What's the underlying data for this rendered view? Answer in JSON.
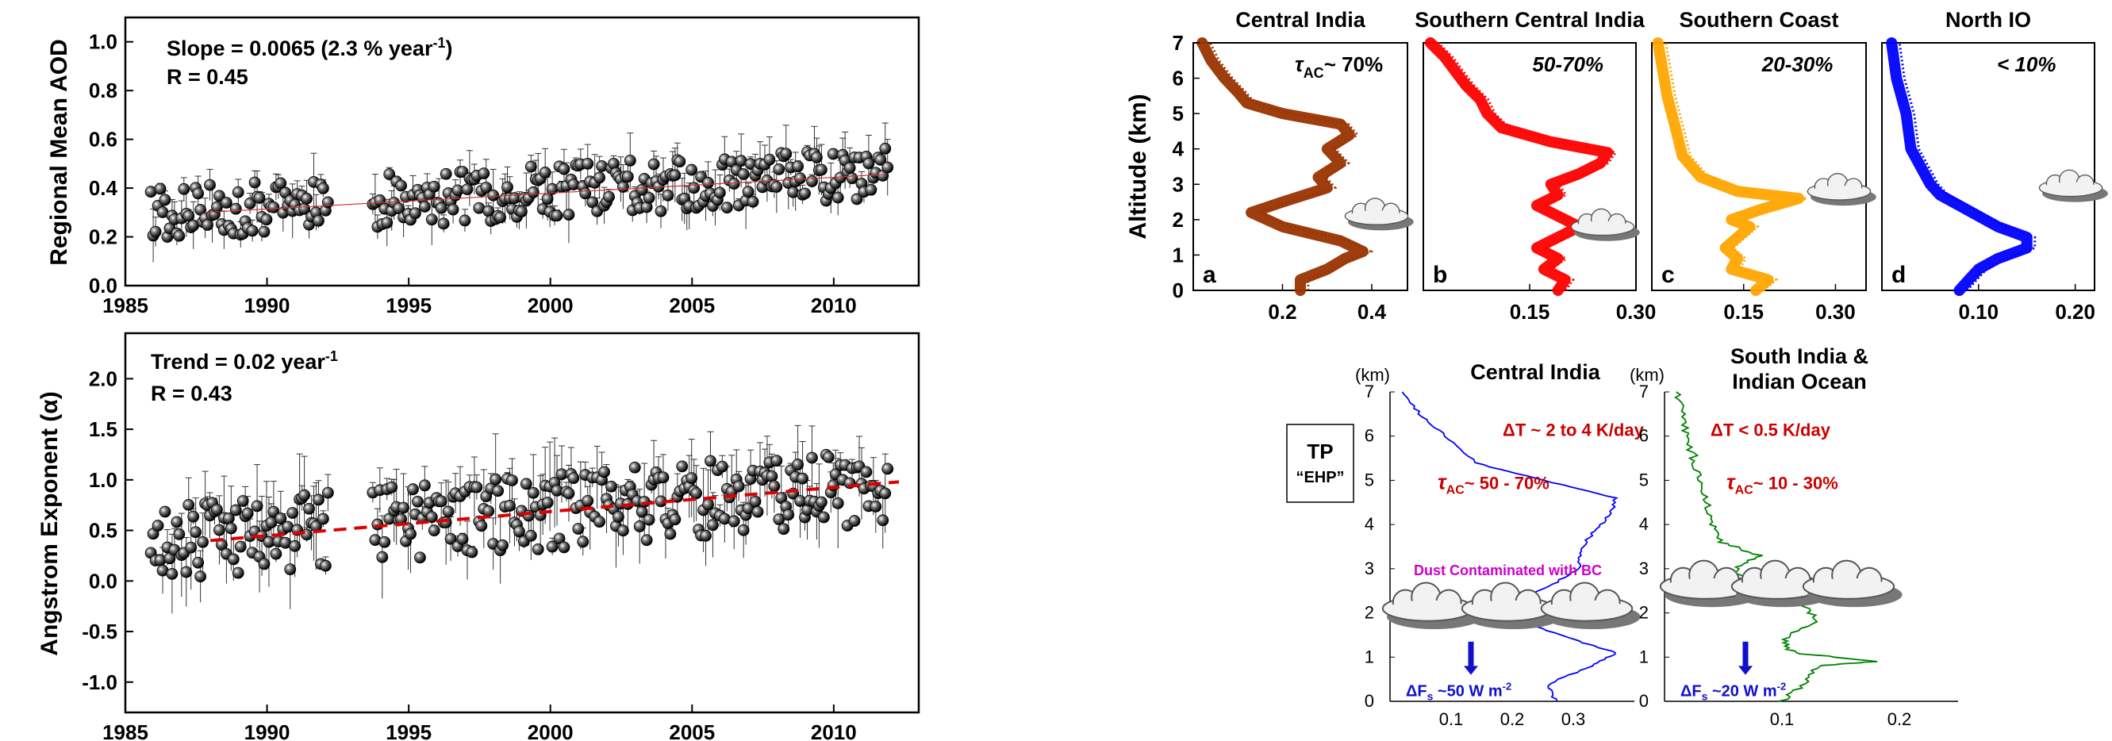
{
  "chart_data": [
    {
      "type": "scatter",
      "panel": "top-left",
      "ylabel": "Regional Mean AOD",
      "xlim": [
        1985,
        2013
      ],
      "ylim": [
        0,
        1.1
      ],
      "xticks": [
        "1985",
        "1990",
        "1995",
        "2000",
        "2005",
        "2010"
      ],
      "yticks": [
        "0.0",
        "0.2",
        "0.4",
        "0.6",
        "0.8",
        "1.0"
      ],
      "stat1_main": "Slope = 0.0065 (2.3 % year",
      "stat1_sup": "-1",
      "stat1_end": ")",
      "stat2": "R = 0.45",
      "trend": {
        "x0": 1987.8,
        "y0": 0.3,
        "x1": 2011.8,
        "y1": 0.456,
        "color": "#cc3333",
        "style": "solid"
      },
      "series": [
        {
          "name": "",
          "x": [],
          "y": []
        }
      ]
    },
    {
      "type": "scatter",
      "panel": "bottom-left",
      "ylabel": "Angstrom Exponent (α)",
      "xlim": [
        1985,
        2013
      ],
      "ylim": [
        -1.3,
        2.45
      ],
      "xticks": [
        "1985",
        "1990",
        "1995",
        "2000",
        "2005",
        "2010"
      ],
      "yticks": [
        "-1.0",
        "-0.5",
        "0.0",
        "0.5",
        "1.0",
        "1.5",
        "2.0"
      ],
      "stat1_main": "Trend = 0.02 year",
      "stat1_sup": "-1",
      "stat2": "R = 0.43",
      "trend": {
        "x0": 1988,
        "y0": 0.4,
        "x1": 2012.3,
        "y1": 0.98,
        "color": "#dd0000",
        "style": "dashed"
      },
      "series": [
        {
          "name": "",
          "x": [],
          "y": []
        }
      ]
    },
    {
      "type": "line",
      "panel": "top-right",
      "ylabel": "Altitude (km)",
      "ylim": [
        0,
        7
      ],
      "yticks": [
        "0",
        "1",
        "2",
        "3",
        "4",
        "5",
        "6",
        "7"
      ],
      "subplots": [
        {
          "title": "Central India",
          "letter": "a",
          "label": "τ",
          "label_sub": "AC",
          "label_end": "~ 70%",
          "color": "#993300",
          "xticks": [
            "0.2",
            "0.4"
          ],
          "xlim": [
            0.0,
            0.48
          ],
          "profile_km": [
            0,
            0.3,
            0.6,
            0.9,
            1.1,
            1.4,
            1.8,
            2.2,
            2.5,
            2.9,
            3.2,
            3.6,
            4.0,
            4.4,
            4.7,
            5.0,
            5.3,
            5.6,
            6.0,
            6.5,
            7.0
          ],
          "profile_val": [
            0.24,
            0.24,
            0.3,
            0.34,
            0.38,
            0.33,
            0.2,
            0.13,
            0.2,
            0.3,
            0.28,
            0.33,
            0.3,
            0.35,
            0.33,
            0.2,
            0.12,
            0.1,
            0.07,
            0.04,
            0.02
          ]
        },
        {
          "title": "Southern Central India",
          "letter": "b",
          "label": "50-70%",
          "color": "#ff0000",
          "xticks": [
            "0.15",
            "0.30"
          ],
          "xlim": [
            0.0,
            0.3
          ],
          "profile_km": [
            0,
            0.3,
            0.6,
            0.9,
            1.2,
            1.5,
            1.8,
            2.1,
            2.4,
            2.7,
            3.0,
            3.3,
            3.6,
            3.9,
            4.2,
            4.6,
            5.0,
            5.4,
            5.8,
            6.2,
            6.6,
            7.0
          ],
          "profile_val": [
            0.19,
            0.2,
            0.17,
            0.19,
            0.16,
            0.19,
            0.22,
            0.19,
            0.16,
            0.19,
            0.18,
            0.22,
            0.25,
            0.26,
            0.18,
            0.11,
            0.09,
            0.08,
            0.06,
            0.045,
            0.03,
            0.01
          ]
        },
        {
          "title": "Southern Coast",
          "letter": "c",
          "label": "20-30%",
          "color": "#ffa500",
          "xticks": [
            "0.15",
            "0.30"
          ],
          "xlim": [
            0.0,
            0.35
          ],
          "profile_km": [
            0,
            0.3,
            0.6,
            0.9,
            1.2,
            1.5,
            1.8,
            2.0,
            2.3,
            2.6,
            2.8,
            3.2,
            3.8,
            4.5,
            5.5,
            6.5,
            7.0
          ],
          "profile_val": [
            0.17,
            0.19,
            0.13,
            0.14,
            0.12,
            0.14,
            0.16,
            0.13,
            0.18,
            0.24,
            0.14,
            0.08,
            0.05,
            0.04,
            0.025,
            0.015,
            0.01
          ]
        },
        {
          "title": "North IO",
          "letter": "d",
          "label": "< 10%",
          "color": "#0000ff",
          "xticks": [
            "0.10",
            "0.20"
          ],
          "xlim": [
            0.0,
            0.22
          ],
          "profile_km": [
            0,
            0.3,
            0.6,
            0.9,
            1.2,
            1.5,
            1.8,
            2.1,
            2.4,
            2.7,
            3.0,
            3.5,
            4.0,
            5.0,
            6.0,
            7.0
          ],
          "profile_val": [
            0.08,
            0.09,
            0.1,
            0.12,
            0.15,
            0.15,
            0.12,
            0.1,
            0.08,
            0.06,
            0.05,
            0.04,
            0.03,
            0.025,
            0.015,
            0.01
          ]
        }
      ]
    },
    {
      "type": "line",
      "panel": "bottom-right",
      "tp_title": "TP",
      "tp_sub": "“EHP”",
      "ylim": [
        0,
        7
      ],
      "yticks": [
        "0",
        "1",
        "2",
        "3",
        "4",
        "5",
        "6",
        "7"
      ],
      "km_label": "(km)",
      "subplots": [
        {
          "title": "Central India",
          "title2": "",
          "color": "#0000ff",
          "xticks": [
            "0.1",
            "0.2",
            "0.3"
          ],
          "xlim": [
            0.0,
            0.4
          ],
          "dT": "ΔT ~ 2 to 4 K/day",
          "tau": "τ",
          "tau_sub": "AC",
          "tau_end": "~ 50 - 70%",
          "dust": "Dust Contaminated with BC",
          "dF_main": "ΔF",
          "dF_sub": "s",
          "dF_end": " ~50 W m",
          "dF_sup": "-2",
          "profile_km": [
            0,
            0.4,
            0.8,
            1.1,
            1.4,
            1.8,
            2.2,
            2.6,
            3.0,
            3.4,
            3.8,
            4.2,
            4.6,
            5.0,
            5.4,
            6.0,
            6.5,
            7.0
          ],
          "profile_val": [
            0.27,
            0.26,
            0.33,
            0.37,
            0.3,
            0.22,
            0.19,
            0.26,
            0.31,
            0.31,
            0.33,
            0.36,
            0.37,
            0.25,
            0.14,
            0.09,
            0.05,
            0.02
          ]
        },
        {
          "title": "South India &",
          "title2": "Indian Ocean",
          "color": "#008000",
          "xticks": [
            "0.1",
            "0.2"
          ],
          "xlim": [
            0.0,
            0.25
          ],
          "dT": "ΔT  < 0.5 K/day",
          "tau": "τ",
          "tau_sub": "AC",
          "tau_end": "~ 10 - 30%",
          "dust": "",
          "dF_main": "ΔF",
          "dF_sub": "s",
          "dF_end": " ~20 W m",
          "dF_sup": "-2",
          "profile_km": [
            0,
            0.4,
            0.8,
            0.9,
            1.1,
            1.4,
            1.8,
            2.2,
            2.6,
            3.0,
            3.3,
            3.6,
            4.0,
            4.5,
            5.0,
            5.5,
            6.0,
            6.5,
            7.0
          ],
          "profile_val": [
            0.1,
            0.12,
            0.13,
            0.18,
            0.11,
            0.1,
            0.13,
            0.12,
            0.07,
            0.06,
            0.08,
            0.05,
            0.04,
            0.035,
            0.03,
            0.025,
            0.02,
            0.015,
            0.01
          ]
        }
      ]
    }
  ]
}
